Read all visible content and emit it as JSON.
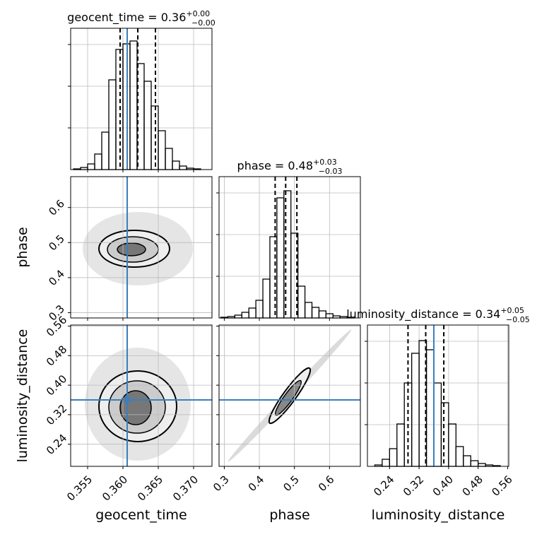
{
  "chart_data": {
    "type": "corner",
    "hist_ylim": [
      0,
      200
    ],
    "hist_yticks": [
      59,
      118,
      177
    ],
    "grid": true,
    "truth_color": "#3b7fbf",
    "line_color": "#000000",
    "params": [
      {
        "label": "geocent_time",
        "title": "geocent_time = 0.36",
        "title_upper": "+0.00",
        "title_lower": "−0.00",
        "lim": [
          0.3526,
          0.3726
        ],
        "ticks": [
          0.355,
          {
            "value": 0.36,
            "label": "0.360"
          },
          0.365,
          {
            "value": 0.37,
            "label": "0.370"
          }
        ],
        "truth": 0.3606,
        "quantiles": [
          0.3596,
          0.3621,
          0.3646
        ],
        "bins": [
          0.353,
          0.354,
          0.355,
          0.356,
          0.357,
          0.358,
          0.359,
          0.36,
          0.361,
          0.362,
          0.363,
          0.364,
          0.365,
          0.366,
          0.367,
          0.368,
          0.369,
          0.37,
          0.371,
          0.372
        ],
        "counts": [
          1,
          3,
          8,
          22,
          53,
          127,
          170,
          178,
          182,
          150,
          125,
          90,
          55,
          30,
          12,
          5,
          2,
          1,
          0
        ]
      },
      {
        "label": "phase",
        "title": "phase = 0.48",
        "title_upper": "+0.03",
        "title_lower": "−0.03",
        "lim": [
          0.285,
          0.688
        ],
        "ticks": [
          0.3,
          0.4,
          0.5,
          0.6
        ],
        "quantiles": [
          0.445,
          0.475,
          0.507
        ],
        "bins": [
          0.29,
          0.31,
          0.33,
          0.35,
          0.37,
          0.39,
          0.41,
          0.43,
          0.45,
          0.47,
          0.49,
          0.51,
          0.53,
          0.55,
          0.57,
          0.59,
          0.61,
          0.63,
          0.65,
          0.67
        ],
        "counts": [
          1,
          2,
          4,
          8,
          14,
          25,
          55,
          115,
          170,
          180,
          120,
          45,
          22,
          15,
          10,
          6,
          3,
          2,
          1
        ]
      },
      {
        "label": "luminosity_distance",
        "title": "luminosity_distance = 0.34",
        "title_upper": "+0.05",
        "title_lower": "−0.05",
        "lim": [
          0.18,
          0.563
        ],
        "ticks": [
          0.24,
          0.32,
          {
            "value": 0.4,
            "label": "0.40"
          },
          0.48,
          0.56
        ],
        "truth": 0.36,
        "quantiles": [
          0.29,
          0.338,
          0.387
        ],
        "bins": [
          0.18,
          0.2,
          0.22,
          0.24,
          0.26,
          0.28,
          0.3,
          0.32,
          0.34,
          0.36,
          0.38,
          0.4,
          0.42,
          0.44,
          0.46,
          0.48,
          0.5,
          0.52,
          0.54,
          0.56
        ],
        "counts": [
          0,
          2,
          10,
          25,
          60,
          118,
          160,
          178,
          165,
          118,
          90,
          60,
          28,
          15,
          8,
          4,
          2,
          1,
          0
        ]
      }
    ]
  }
}
